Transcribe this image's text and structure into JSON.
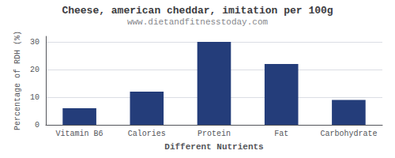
{
  "chart_data": {
    "type": "bar",
    "title": "Cheese, american cheddar, imitation per 100g",
    "subtitle": "www.dietandfitnesstoday.com",
    "xlabel": "Different Nutrients",
    "ylabel": "Percentage of RDH (%)",
    "categories": [
      "Vitamin B6",
      "Calories",
      "Protein",
      "Fat",
      "Carbohydrate"
    ],
    "values": [
      6,
      12,
      30,
      22,
      9
    ],
    "color": "#243d7a",
    "ylim": [
      0,
      32
    ],
    "yticks": [
      0,
      10,
      20,
      30
    ],
    "grid": true
  }
}
